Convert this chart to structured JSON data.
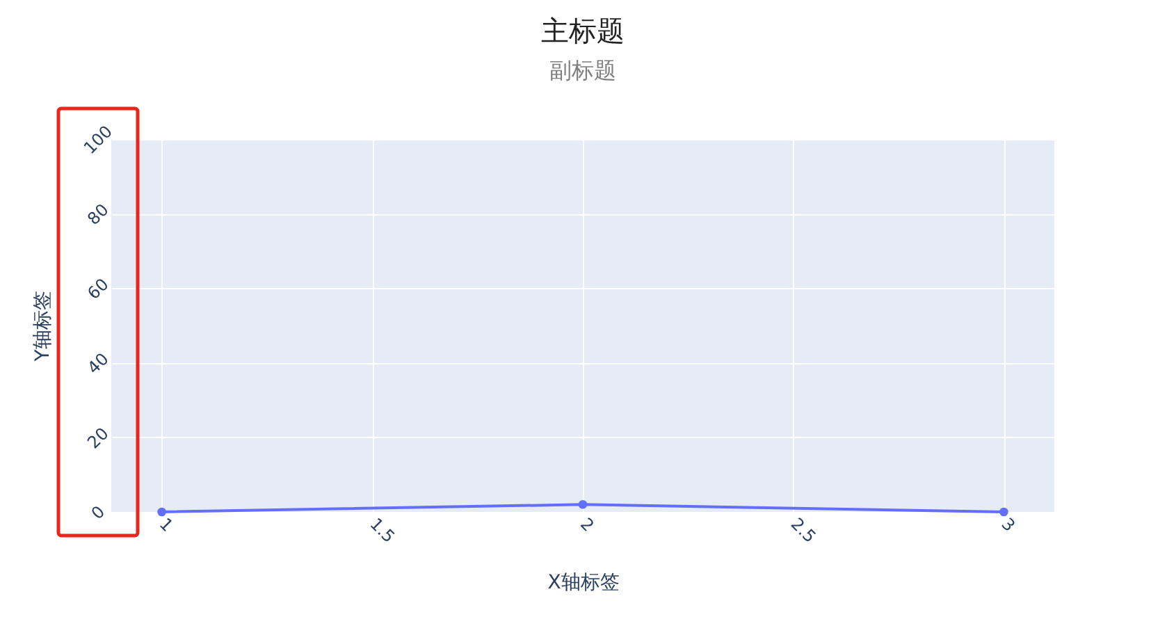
{
  "chart_data": {
    "type": "line",
    "title": "主标题",
    "subtitle": "副标题",
    "xlabel": "X轴标签",
    "ylabel": "Y轴标签",
    "x": [
      1,
      2,
      3
    ],
    "series": [
      {
        "color": "#636efa",
        "values": [
          0,
          2,
          0
        ]
      }
    ],
    "xlim": [
      0.88,
      3.12
    ],
    "xticks": [
      1,
      1.5,
      2,
      2.5,
      3
    ],
    "ylim": [
      0,
      100
    ],
    "yticks": [
      0,
      20,
      40,
      60,
      80,
      100
    ],
    "grid": true,
    "marker": "circle",
    "line_style": "solid"
  }
}
